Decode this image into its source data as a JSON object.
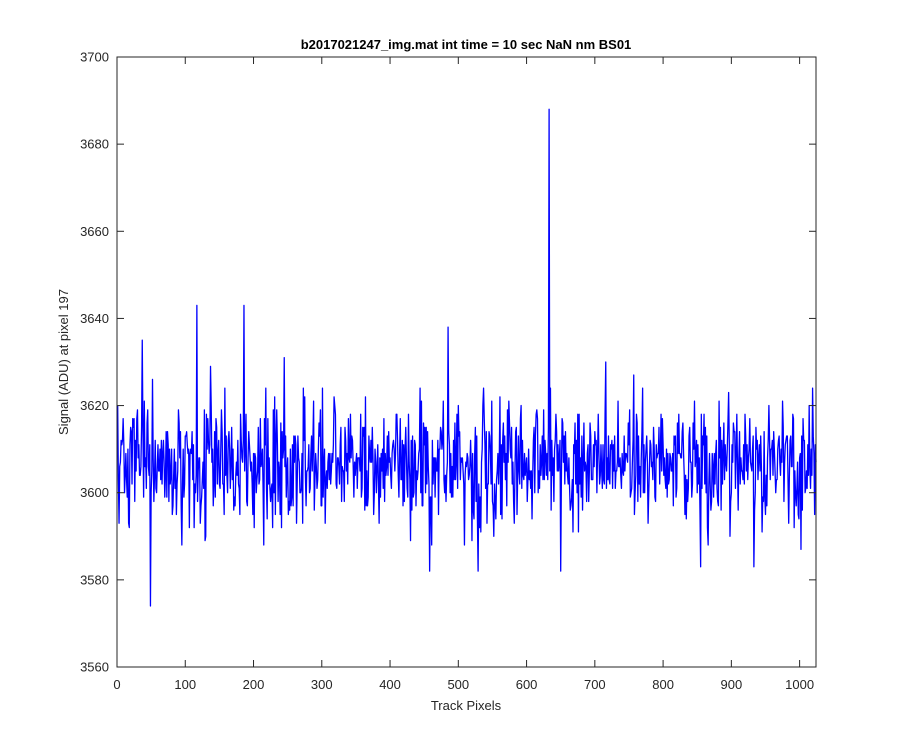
{
  "chart_data": {
    "type": "line",
    "title": "b2017021247_img.mat int time = 10 sec  NaN nm BS01",
    "xlabel": "Track Pixels",
    "ylabel": "Signal (ADU) at pixel 197",
    "xlim": [
      0,
      1024
    ],
    "ylim": [
      3560,
      3700
    ],
    "xticks": [
      0,
      100,
      200,
      300,
      400,
      500,
      600,
      700,
      800,
      900,
      1000
    ],
    "yticks": [
      3560,
      3580,
      3600,
      3620,
      3640,
      3660,
      3680,
      3700
    ],
    "grid": false,
    "line_color": "#0000ff",
    "series": [
      {
        "x_start": 1,
        "x_step": 1,
        "count": 1024,
        "baseline_mean": 3607,
        "baseline_sd": 7,
        "notable_points": [
          {
            "x": 1,
            "y": 3620
          },
          {
            "x": 3,
            "y": 3593
          },
          {
            "x": 37,
            "y": 3635
          },
          {
            "x": 49,
            "y": 3574
          },
          {
            "x": 52,
            "y": 3626
          },
          {
            "x": 117,
            "y": 3643
          },
          {
            "x": 137,
            "y": 3629
          },
          {
            "x": 186,
            "y": 3643
          },
          {
            "x": 215,
            "y": 3588
          },
          {
            "x": 245,
            "y": 3631
          },
          {
            "x": 458,
            "y": 3582
          },
          {
            "x": 485,
            "y": 3638
          },
          {
            "x": 529,
            "y": 3582
          },
          {
            "x": 633,
            "y": 3688
          },
          {
            "x": 650,
            "y": 3582
          },
          {
            "x": 716,
            "y": 3630
          },
          {
            "x": 757,
            "y": 3627
          },
          {
            "x": 855,
            "y": 3583
          },
          {
            "x": 933,
            "y": 3583
          },
          {
            "x": 1022,
            "y": 3595
          }
        ]
      }
    ]
  }
}
